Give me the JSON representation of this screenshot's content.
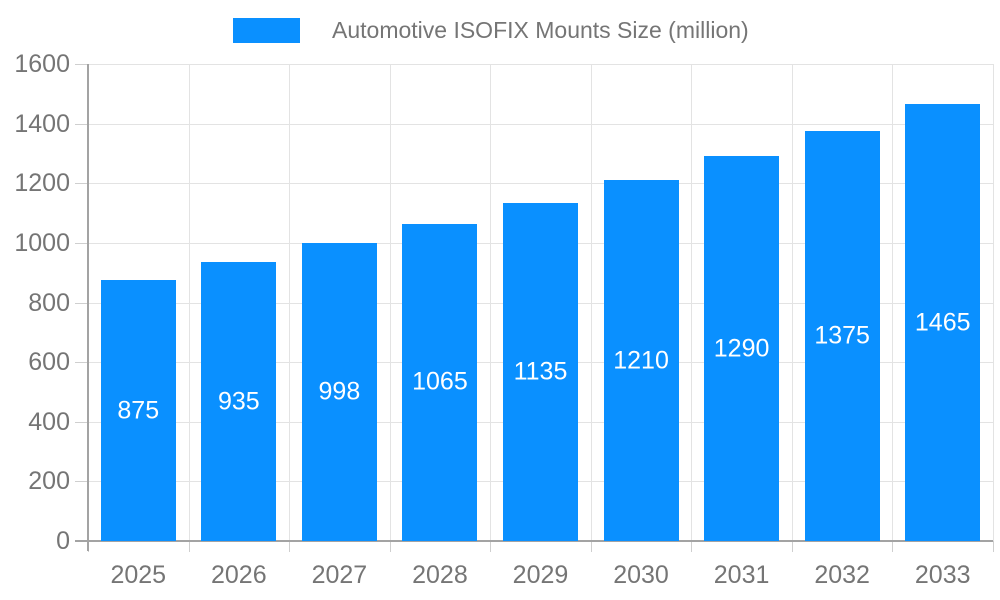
{
  "chart_data": {
    "type": "bar",
    "title": "",
    "legend_label": "Automotive ISOFIX Mounts Size (million)",
    "categories": [
      "2025",
      "2026",
      "2027",
      "2028",
      "2029",
      "2030",
      "2031",
      "2032",
      "2033"
    ],
    "values": [
      875,
      935,
      998,
      1065,
      1135,
      1210,
      1290,
      1375,
      1465
    ],
    "xlabel": "",
    "ylabel": "",
    "ylim": [
      0,
      1600
    ],
    "ytick_step": 200,
    "ytick_labels": [
      "0",
      "200",
      "400",
      "600",
      "800",
      "1000",
      "1200",
      "1400",
      "1600"
    ],
    "grid": true,
    "legend_position": "top-center",
    "bar_color": "#0A90FF",
    "value_label_color": "#FFFFFF",
    "axis_text_color": "#757575",
    "gridline_color": "#E3E3E3",
    "tick_color": "#CFCFCF",
    "axis_line_color": "#A3A3A3",
    "background_color": "#FFFFFF"
  }
}
